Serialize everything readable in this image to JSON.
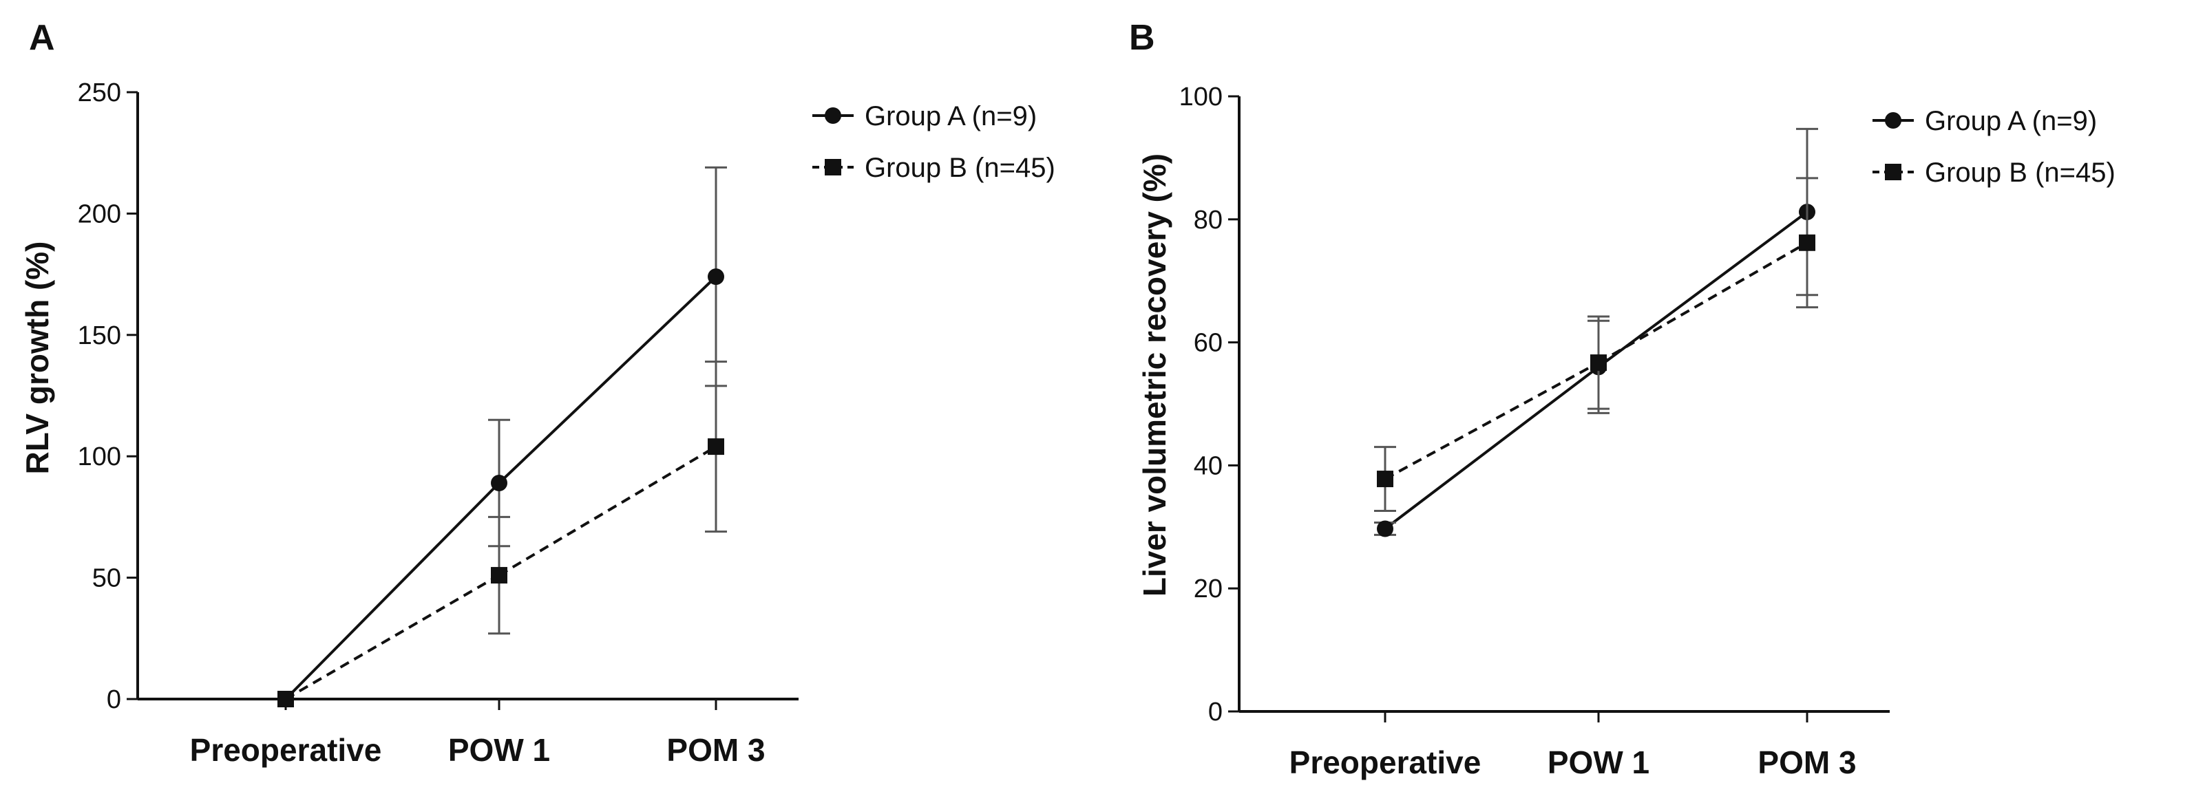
{
  "chart_data": [
    {
      "panel": "A",
      "type": "line",
      "title": "",
      "xlabel": "",
      "ylabel": "RLV growth (%)",
      "categories": [
        "Preoperative",
        "POW 1",
        "POM 3"
      ],
      "ylim": [
        0,
        250
      ],
      "yticks": [
        0,
        50,
        100,
        150,
        200,
        250
      ],
      "legend": "top-right",
      "series": [
        {
          "name": "Group A (n=9)",
          "marker": "circle",
          "line": "solid",
          "values": [
            0,
            89,
            174
          ],
          "errors": [
            0,
            26,
            45
          ]
        },
        {
          "name": "Group B (n=45)",
          "marker": "square",
          "line": "dashed",
          "values": [
            0,
            51,
            104
          ],
          "errors": [
            0,
            24,
            35
          ]
        }
      ]
    },
    {
      "panel": "B",
      "type": "line",
      "title": "",
      "xlabel": "",
      "ylabel": "Liver volumetric recovery (%)",
      "categories": [
        "Preoperative",
        "POW 1",
        "POM 3"
      ],
      "ylim": [
        0,
        100
      ],
      "yticks": [
        0,
        20,
        40,
        60,
        80,
        100
      ],
      "legend": "top-right",
      "series": [
        {
          "name": "Group A (n=9)",
          "marker": "circle",
          "line": "solid",
          "values": [
            29.7,
            56,
            81.2
          ],
          "errors": [
            1,
            7.5,
            13.5
          ]
        },
        {
          "name": "Group B (n=45)",
          "marker": "square",
          "line": "dashed",
          "values": [
            37.8,
            56.7,
            76.2
          ],
          "errors": [
            5.2,
            7.5,
            10.5
          ]
        }
      ]
    }
  ]
}
